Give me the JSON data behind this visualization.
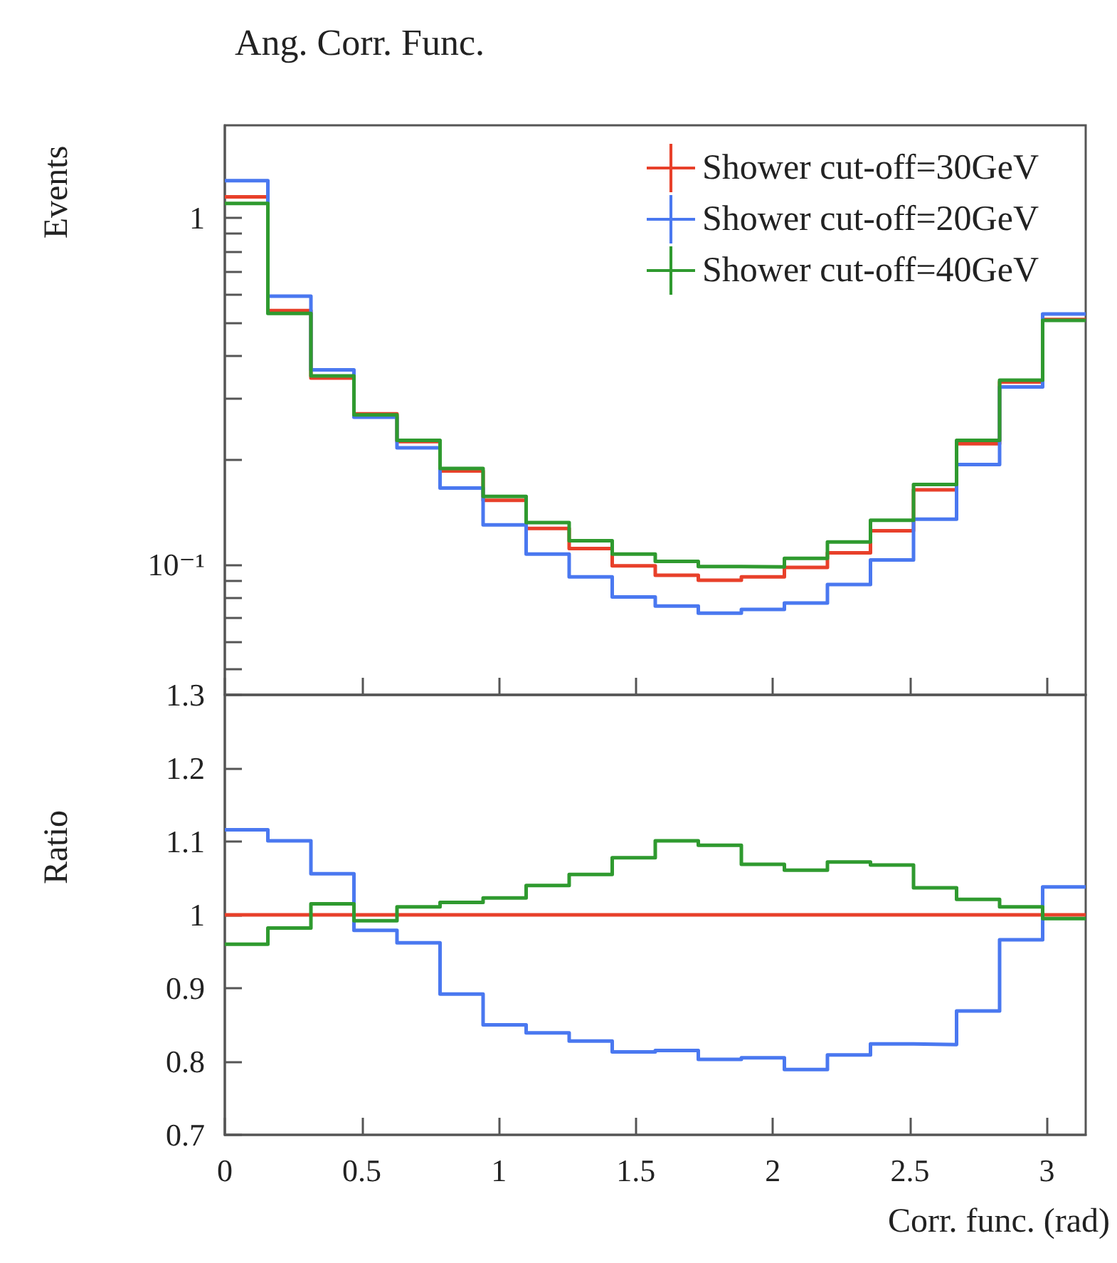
{
  "chart_data": [
    {
      "type": "histogram",
      "title": "Ang. Corr. Func.",
      "ylabel": "Events",
      "log": true,
      "legend": "top right",
      "tick_labels": "y",
      "bins": [
        0,
        0.1571,
        0.3142,
        0.4712,
        0.6283,
        0.7854,
        0.9425,
        1.0996,
        1.2566,
        1.4137,
        1.5708,
        1.7279,
        1.885,
        2.042,
        2.1991,
        2.3562,
        2.5133,
        2.6704,
        2.8274,
        2.9845,
        3.1416
      ],
      "xlim": [
        0,
        3.1416
      ],
      "xticks": [
        0,
        0.5,
        1,
        1.5,
        2,
        2.5,
        3
      ],
      "ylim": [
        0.042,
        1.85
      ],
      "yticks": [
        {
          "value": 0.05,
          "label": null
        },
        {
          "value": 0.06,
          "label": null
        },
        {
          "value": 0.07,
          "label": null
        },
        {
          "value": 0.08,
          "label": null
        },
        {
          "value": 0.09,
          "label": null
        },
        {
          "value": 0.1,
          "label": "10⁻¹"
        },
        {
          "value": 0.2,
          "label": null
        },
        {
          "value": 0.3,
          "label": null
        },
        {
          "value": 0.4,
          "label": null
        },
        {
          "value": 0.5,
          "label": null
        },
        {
          "value": 0.6,
          "label": null
        },
        {
          "value": 0.7,
          "label": null
        },
        {
          "value": 0.8,
          "label": null
        },
        {
          "value": 0.9,
          "label": null
        },
        {
          "value": 1,
          "label": "1"
        }
      ],
      "series": [
        {
          "name": "Shower cut-off=30GeV",
          "color": "#e8402a",
          "values": [
            1.15,
            0.54,
            0.345,
            0.272,
            0.226,
            0.186,
            0.153,
            0.127,
            0.111,
            0.099,
            0.093,
            0.09,
            0.092,
            0.098,
            0.108,
            0.125,
            0.164,
            0.223,
            0.336,
            0.509
          ]
        },
        {
          "name": "Shower cut-off=20GeV",
          "color": "#4a78f0",
          "values": [
            1.28,
            0.594,
            0.364,
            0.266,
            0.217,
            0.166,
            0.13,
            0.107,
            0.092,
            0.0805,
            0.0758,
            0.0723,
            0.0741,
            0.0773,
            0.0874,
            0.103,
            0.135,
            0.194,
            0.325,
            0.528
          ]
        },
        {
          "name": "Shower cut-off=40GeV",
          "color": "#2f9a2f",
          "values": [
            1.1,
            0.53,
            0.35,
            0.27,
            0.228,
            0.189,
            0.157,
            0.132,
            0.117,
            0.107,
            0.102,
            0.0986,
            0.0983,
            0.104,
            0.116,
            0.134,
            0.17,
            0.228,
            0.34,
            0.506
          ]
        }
      ]
    },
    {
      "type": "histogram",
      "ylabel": "Ratio",
      "xlabel": "Corr. func. (rad)",
      "bins": [
        0,
        0.1571,
        0.3142,
        0.4712,
        0.6283,
        0.7854,
        0.9425,
        1.0996,
        1.2566,
        1.4137,
        1.5708,
        1.7279,
        1.885,
        2.042,
        2.1991,
        2.3562,
        2.5133,
        2.6704,
        2.8274,
        2.9845,
        3.1416
      ],
      "xlim": [
        0,
        3.1416
      ],
      "xticks": [
        0,
        0.5,
        1,
        1.5,
        2,
        2.5,
        3
      ],
      "ylim": [
        0.7,
        1.3
      ],
      "yticks": [
        0.7,
        0.8,
        0.9,
        1,
        1.1,
        1.2,
        1.3
      ],
      "series": [
        {
          "color": "#e8402a",
          "values": [
            1,
            1,
            1,
            1,
            1,
            1,
            1,
            1,
            1,
            1,
            1,
            1,
            1,
            1,
            1,
            1,
            1,
            1,
            1,
            1
          ]
        },
        {
          "color": "#4a78f0",
          "values": [
            1.116,
            1.101,
            1.056,
            0.979,
            0.962,
            0.892,
            0.85,
            0.839,
            0.828,
            0.813,
            0.815,
            0.803,
            0.805,
            0.789,
            0.809,
            0.824,
            0.823,
            0.869,
            0.966,
            1.038
          ]
        },
        {
          "color": "#2f9a2f",
          "values": [
            0.96,
            0.982,
            1.015,
            0.992,
            1.011,
            1.017,
            1.023,
            1.04,
            1.055,
            1.078,
            1.101,
            1.095,
            1.069,
            1.061,
            1.072,
            1.068,
            1.037,
            1.021,
            1.011,
            0.995
          ]
        }
      ]
    }
  ]
}
